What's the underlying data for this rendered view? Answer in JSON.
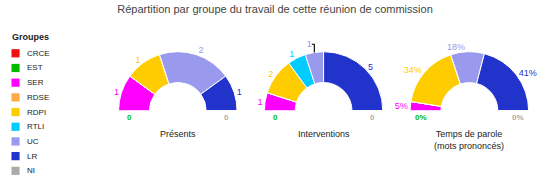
{
  "title": "Répartition par groupe du travail de cette réunion de commission",
  "legend_title": "Groupes",
  "chart_data": [
    {
      "type": "pie",
      "title": "Présents",
      "categories": [
        "CRCE",
        "EST",
        "SER",
        "RDSE",
        "RDPI",
        "RTLI",
        "UC",
        "LR",
        "NI"
      ],
      "values": [
        0,
        0,
        1,
        0,
        1,
        0,
        2,
        1,
        0
      ],
      "colors": [
        "#ee1111",
        "#00bb00",
        "#ff00ff",
        "#ffaa44",
        "#ffcc00",
        "#00ccff",
        "#9999ee",
        "#2233cc",
        "#aaaaaa"
      ],
      "data_labels": true,
      "annotations": [
        {
          "text": "0",
          "color": "#00bb00"
        },
        {
          "text": "0",
          "color": "#aaaaaa"
        }
      ]
    },
    {
      "type": "pie",
      "title": "Interventions",
      "categories": [
        "CRCE",
        "EST",
        "SER",
        "RDSE",
        "RDPI",
        "RTLI",
        "UC",
        "LR",
        "NI"
      ],
      "values": [
        0,
        0,
        1,
        0,
        2,
        1,
        1,
        5,
        0
      ],
      "colors": [
        "#ee1111",
        "#00bb00",
        "#ff00ff",
        "#ffaa44",
        "#ffcc00",
        "#00ccff",
        "#9999ee",
        "#2233cc",
        "#aaaaaa"
      ],
      "data_labels": true,
      "annotations": [
        {
          "text": "0",
          "color": "#00bb00"
        },
        {
          "text": "0",
          "color": "#aaaaaa"
        }
      ]
    },
    {
      "type": "pie",
      "title": "Temps de parole\n(mots prononcés)",
      "categories": [
        "CRCE",
        "EST",
        "SER",
        "RDSE",
        "RDPI",
        "RTLI",
        "UC",
        "LR",
        "NI"
      ],
      "values": [
        0,
        0,
        5,
        0,
        34,
        0,
        18,
        41,
        0
      ],
      "value_labels": [
        null,
        null,
        "5%",
        null,
        "34%",
        null,
        "18%",
        "41%",
        null
      ],
      "colors": [
        "#ee1111",
        "#00bb00",
        "#ff00ff",
        "#ffaa44",
        "#ffcc00",
        "#00ccff",
        "#9999ee",
        "#2233cc",
        "#aaaaaa"
      ],
      "data_labels": true,
      "annotations": [
        {
          "text": "0%",
          "color": "#00bb00"
        },
        {
          "text": "0%",
          "color": "#aaaaaa"
        }
      ]
    }
  ]
}
